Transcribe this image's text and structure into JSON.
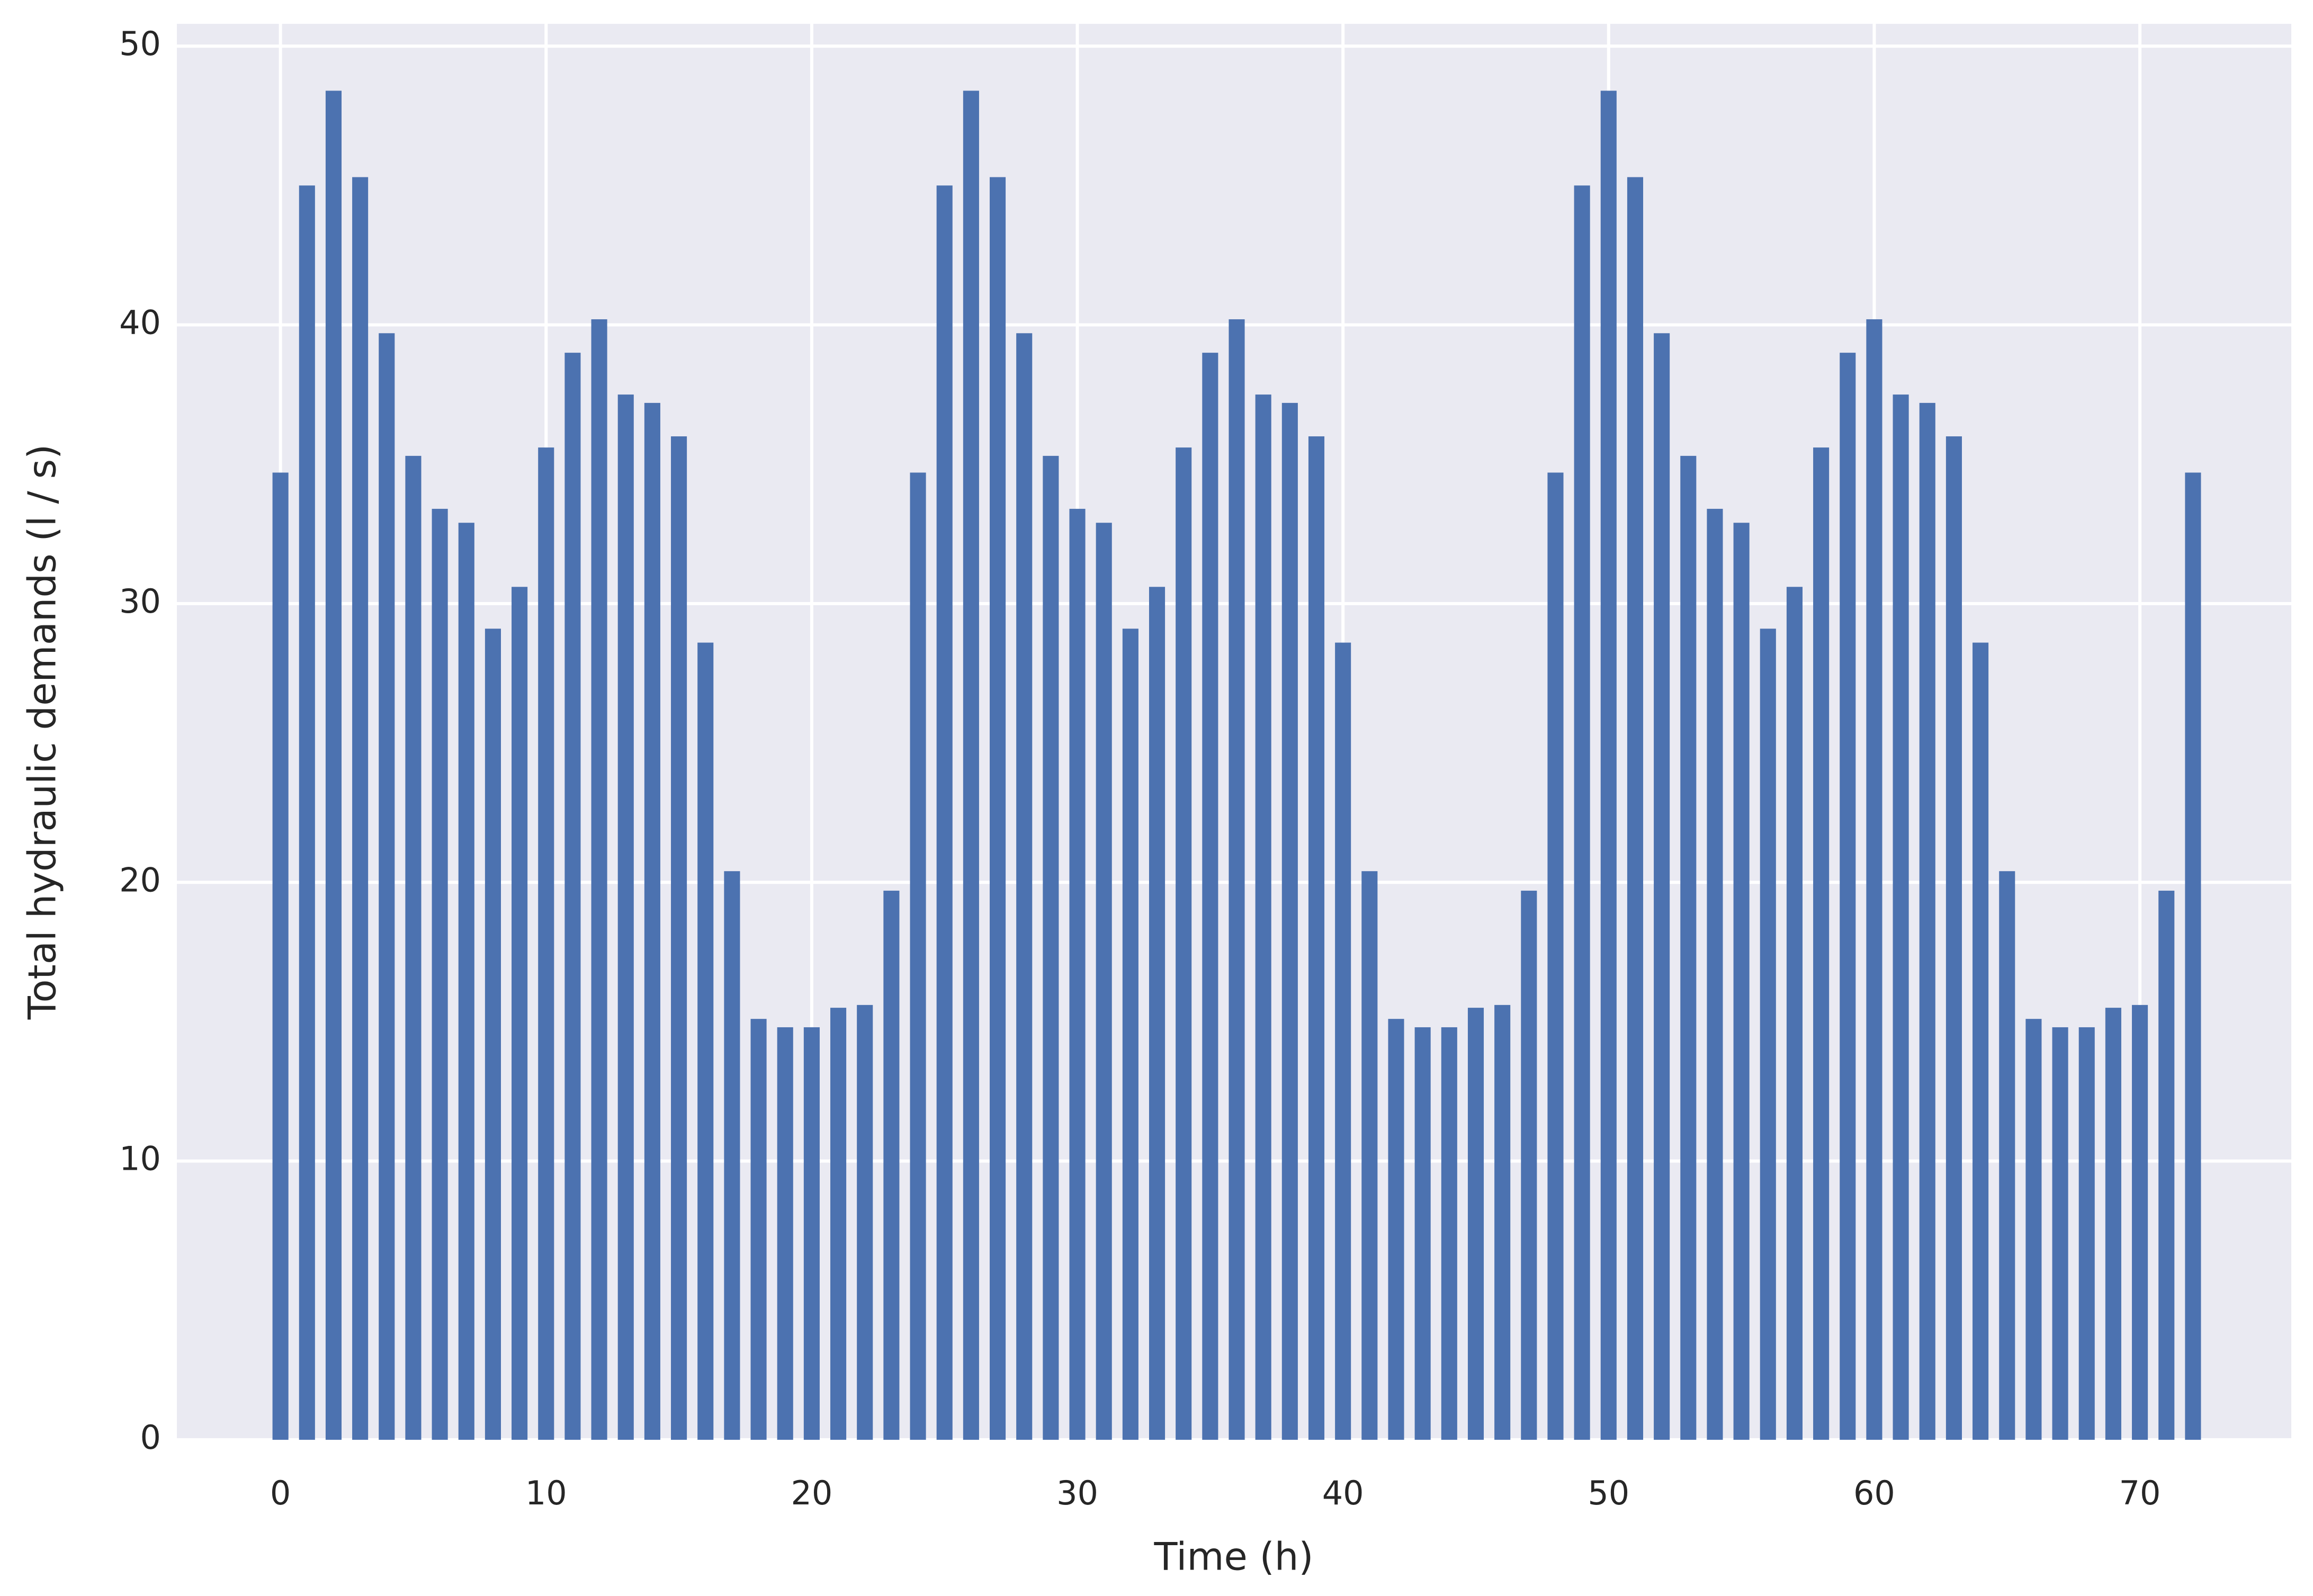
{
  "chart_data": {
    "type": "bar",
    "xlabel": "Time (h)",
    "ylabel": "Total hydraulic demands (l / s)",
    "x": [
      0,
      1,
      2,
      3,
      4,
      5,
      6,
      7,
      8,
      9,
      10,
      11,
      12,
      13,
      14,
      15,
      16,
      17,
      18,
      19,
      20,
      21,
      22,
      23,
      24,
      25,
      26,
      27,
      28,
      29,
      30,
      31,
      32,
      33,
      34,
      35,
      36,
      37,
      38,
      39,
      40,
      41,
      42,
      43,
      44,
      45,
      46,
      47,
      48,
      49,
      50,
      51,
      52,
      53,
      54,
      55,
      56,
      57,
      58,
      59,
      60,
      61,
      62,
      63,
      64,
      65,
      66,
      67,
      68,
      69,
      70,
      71,
      72
    ],
    "values": [
      34.7,
      45.0,
      48.4,
      45.3,
      39.7,
      35.3,
      33.4,
      32.9,
      29.1,
      30.6,
      35.6,
      39.0,
      40.2,
      37.5,
      37.2,
      36.0,
      28.6,
      20.4,
      15.1,
      14.8,
      14.8,
      15.5,
      15.6,
      19.7,
      34.7,
      45.0,
      48.4,
      45.3,
      39.7,
      35.3,
      33.4,
      32.9,
      29.1,
      30.6,
      35.6,
      39.0,
      40.2,
      37.5,
      37.2,
      36.0,
      28.6,
      20.4,
      15.1,
      14.8,
      14.8,
      15.5,
      15.6,
      19.7,
      34.7,
      45.0,
      48.4,
      45.3,
      39.7,
      35.3,
      33.4,
      32.9,
      29.1,
      30.6,
      35.6,
      39.0,
      40.2,
      37.5,
      37.2,
      36.0,
      28.6,
      20.4,
      15.1,
      14.8,
      14.8,
      15.5,
      15.6,
      19.7,
      34.7
    ],
    "color": "#4c72b0",
    "background": "#eaeaf2",
    "xlim": [
      -3.9,
      75.7
    ],
    "ylim": [
      0,
      50.8
    ],
    "xticks": [
      0,
      10,
      20,
      30,
      40,
      50,
      60,
      70
    ],
    "yticks": [
      0,
      10,
      20,
      30,
      40,
      50
    ],
    "grid": true
  }
}
